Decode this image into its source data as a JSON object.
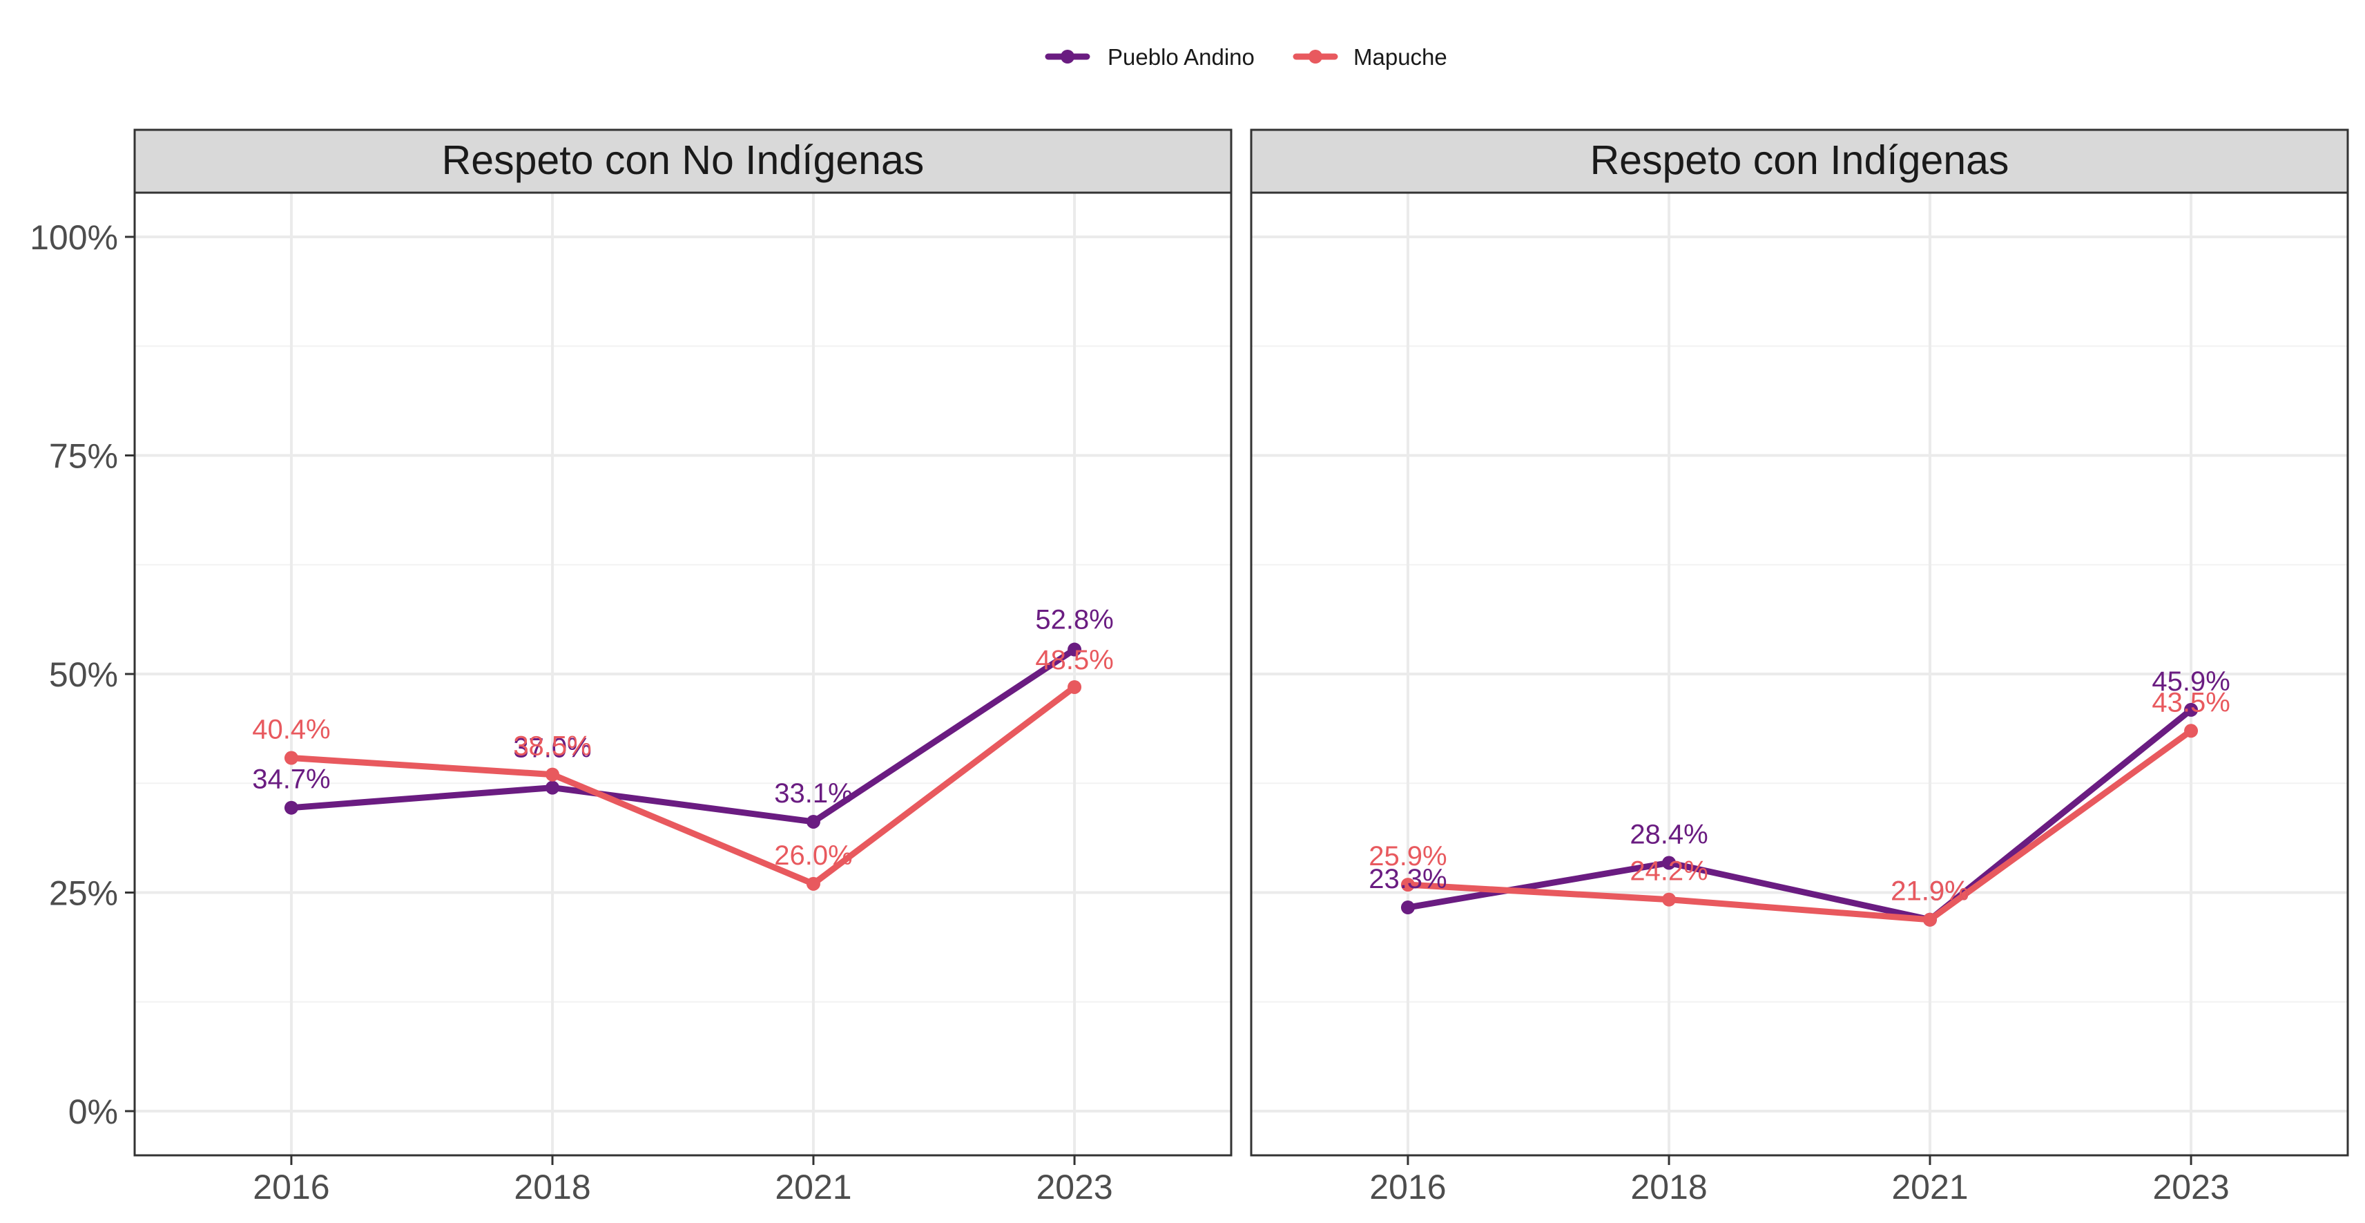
{
  "legend": {
    "entries": [
      {
        "name": "Pueblo Andino",
        "color": "#6a1c81"
      },
      {
        "name": "Mapuche",
        "color": "#e8595e"
      }
    ],
    "position": "top"
  },
  "chart_data": [
    {
      "type": "line",
      "title": "Respeto con No Indígenas",
      "x": [
        "2016",
        "2018",
        "2021",
        "2023"
      ],
      "ylim": [
        0,
        100
      ],
      "yticks": [
        "0%",
        "25%",
        "50%",
        "75%",
        "100%"
      ],
      "grid": true,
      "series": [
        {
          "name": "Pueblo Andino",
          "color": "#6a1c81",
          "values": [
            34.7,
            37.0,
            33.1,
            52.8
          ],
          "labels": [
            "34.7%",
            "37.0%",
            "33.1%",
            "52.8%"
          ]
        },
        {
          "name": "Mapuche",
          "color": "#e8595e",
          "values": [
            40.4,
            38.5,
            26.0,
            48.5
          ],
          "labels": [
            "40.4%",
            "38.5%",
            "26.0%",
            "48.5%"
          ]
        }
      ]
    },
    {
      "type": "line",
      "title": "Respeto con Indígenas",
      "x": [
        "2016",
        "2018",
        "2021",
        "2023"
      ],
      "ylim": [
        0,
        100
      ],
      "yticks": [
        "0%",
        "25%",
        "50%",
        "75%",
        "100%"
      ],
      "grid": true,
      "series": [
        {
          "name": "Pueblo Andino",
          "color": "#6a1c81",
          "values": [
            23.3,
            28.4,
            21.9,
            45.9
          ],
          "labels": [
            "23.3%",
            "28.4%",
            "21.9%",
            "45.9%"
          ]
        },
        {
          "name": "Mapuche",
          "color": "#e8595e",
          "values": [
            25.9,
            24.2,
            21.9,
            43.5
          ],
          "labels": [
            "25.9%",
            "24.2%",
            "21.9%",
            "43.5%"
          ]
        }
      ]
    }
  ]
}
